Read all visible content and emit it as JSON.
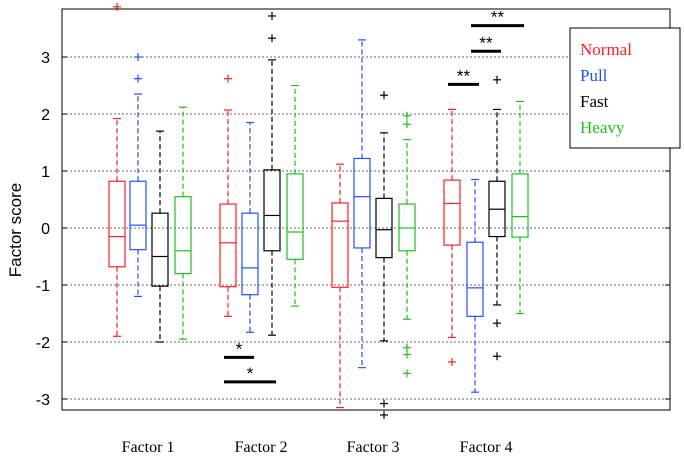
{
  "chart_data": {
    "type": "boxplot",
    "ylabel": "Factor score",
    "ylim": [
      -3.15,
      3.9
    ],
    "yticks": [
      3,
      2,
      1,
      0,
      -1,
      -2,
      -3
    ],
    "grid": true,
    "legend_position": "top-right",
    "categories": [
      "Factor 1",
      "Factor 2",
      "Factor 3",
      "Factor 4"
    ],
    "series": [
      {
        "name": "Normal",
        "color": "#ff2020",
        "boxes": [
          {
            "whisker_low": -1.9,
            "q1": -0.68,
            "median": -0.15,
            "q3": 0.82,
            "whisker_high": 1.92,
            "outliers": [
              3.88
            ]
          },
          {
            "whisker_low": -1.55,
            "q1": -1.03,
            "median": -0.26,
            "q3": 0.42,
            "whisker_high": 2.07,
            "outliers": [
              2.62
            ]
          },
          {
            "whisker_low": -3.15,
            "q1": -1.04,
            "median": 0.12,
            "q3": 0.44,
            "whisker_high": 1.12,
            "outliers": []
          },
          {
            "whisker_low": -1.92,
            "q1": -0.3,
            "median": 0.43,
            "q3": 0.84,
            "whisker_high": 2.08,
            "outliers": [
              -2.35
            ]
          }
        ]
      },
      {
        "name": "Pull",
        "color": "#2050ff",
        "boxes": [
          {
            "whisker_low": -1.2,
            "q1": -0.38,
            "median": 0.05,
            "q3": 0.82,
            "whisker_high": 2.35,
            "outliers": [
              3.0,
              2.62
            ]
          },
          {
            "whisker_low": -1.83,
            "q1": -1.17,
            "median": -0.7,
            "q3": 0.26,
            "whisker_high": 1.85,
            "outliers": []
          },
          {
            "whisker_low": -2.45,
            "q1": -0.35,
            "median": 0.55,
            "q3": 1.22,
            "whisker_high": 3.3,
            "outliers": []
          },
          {
            "whisker_low": -2.88,
            "q1": -1.55,
            "median": -1.05,
            "q3": -0.25,
            "whisker_high": 0.85,
            "outliers": []
          }
        ]
      },
      {
        "name": "Fast",
        "color": "#000000",
        "boxes": [
          {
            "whisker_low": -2.0,
            "q1": -1.02,
            "median": -0.5,
            "q3": 0.26,
            "whisker_high": 1.7,
            "outliers": []
          },
          {
            "whisker_low": -1.88,
            "q1": -0.4,
            "median": 0.22,
            "q3": 1.02,
            "whisker_high": 2.95,
            "outliers": [
              3.72,
              3.33
            ]
          },
          {
            "whisker_low": -1.98,
            "q1": -0.52,
            "median": -0.03,
            "q3": 0.52,
            "whisker_high": 1.67,
            "outliers": [
              2.33,
              -3.08,
              -3.28
            ]
          },
          {
            "whisker_low": -1.35,
            "q1": -0.15,
            "median": 0.33,
            "q3": 0.82,
            "whisker_high": 2.08,
            "outliers": [
              2.6,
              -1.67,
              -2.25
            ]
          }
        ]
      },
      {
        "name": "Heavy",
        "color": "#20c020",
        "boxes": [
          {
            "whisker_low": -1.95,
            "q1": -0.8,
            "median": -0.4,
            "q3": 0.55,
            "whisker_high": 2.12,
            "outliers": []
          },
          {
            "whisker_low": -1.37,
            "q1": -0.55,
            "median": -0.07,
            "q3": 0.95,
            "whisker_high": 2.5,
            "outliers": []
          },
          {
            "whisker_low": -1.6,
            "q1": -0.4,
            "median": 0.0,
            "q3": 0.42,
            "whisker_high": 1.55,
            "outliers": [
              1.97,
              1.82,
              -2.1,
              -2.22,
              -2.55
            ]
          },
          {
            "whisker_low": -1.5,
            "q1": -0.16,
            "median": 0.2,
            "q3": 0.95,
            "whisker_high": 2.22,
            "outliers": []
          }
        ]
      }
    ],
    "significance": [
      {
        "category": "Factor 2",
        "from": "Normal",
        "to": "Pull",
        "y": -2.27,
        "label": "*"
      },
      {
        "category": "Factor 2",
        "from": "Normal",
        "to": "Fast",
        "y": -2.7,
        "label": "*"
      },
      {
        "category": "Factor 4",
        "from": "Normal",
        "to": "Pull",
        "y": 2.52,
        "label": "**"
      },
      {
        "category": "Factor 4",
        "from": "Pull",
        "to": "Fast",
        "y": 3.1,
        "label": "**"
      },
      {
        "category": "Factor 4",
        "from": "Pull",
        "to": "Heavy",
        "y": 3.55,
        "label": "**"
      }
    ]
  }
}
